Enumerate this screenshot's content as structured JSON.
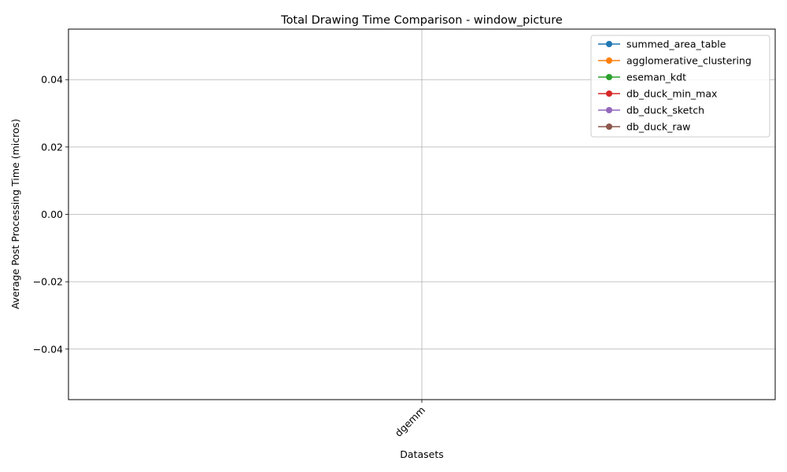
{
  "chart_data": {
    "type": "line",
    "title": "Total Drawing Time Comparison - window_picture",
    "xlabel": "Datasets",
    "ylabel": "Average Post Processing Time (micros)",
    "categories": [
      "dgemm"
    ],
    "ylim": [
      -0.055,
      0.055
    ],
    "yticks": [
      -0.04,
      -0.02,
      0.0,
      0.02,
      0.04
    ],
    "ytick_labels": [
      "−0.04",
      "−0.02",
      "0.00",
      "0.02",
      "0.04"
    ],
    "xtick_rotation": 45,
    "grid": true,
    "legend_position": "top-right",
    "series": [
      {
        "name": "summed_area_table",
        "color": "#1f77b4",
        "values": [
          null
        ]
      },
      {
        "name": "agglomerative_clustering",
        "color": "#ff7f0e",
        "values": [
          null
        ]
      },
      {
        "name": "eseman_kdt",
        "color": "#2ca02c",
        "values": [
          null
        ]
      },
      {
        "name": "db_duck_min_max",
        "color": "#d62728",
        "values": [
          null
        ]
      },
      {
        "name": "db_duck_sketch",
        "color": "#9467bd",
        "values": [
          null
        ]
      },
      {
        "name": "db_duck_raw",
        "color": "#8c564b",
        "values": [
          null
        ]
      }
    ]
  }
}
